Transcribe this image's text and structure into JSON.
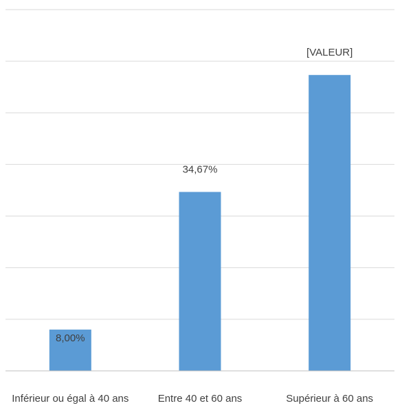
{
  "chart_data": {
    "type": "bar",
    "categories": [
      "Inférieur ou égal à 40 ans",
      "Entre 40 et 60 ans",
      "Supérieur à 60 ans"
    ],
    "values": [
      8.0,
      34.67,
      57.33
    ],
    "data_labels": [
      "8,00%",
      "34,67%",
      "[VALEUR]"
    ],
    "ylim": [
      0,
      70
    ],
    "ytick_step": 10,
    "grid": true,
    "legend": "none",
    "colors": {
      "bar": "#5b9bd5",
      "grid": "#d9d9d9",
      "text": "#404040"
    }
  }
}
